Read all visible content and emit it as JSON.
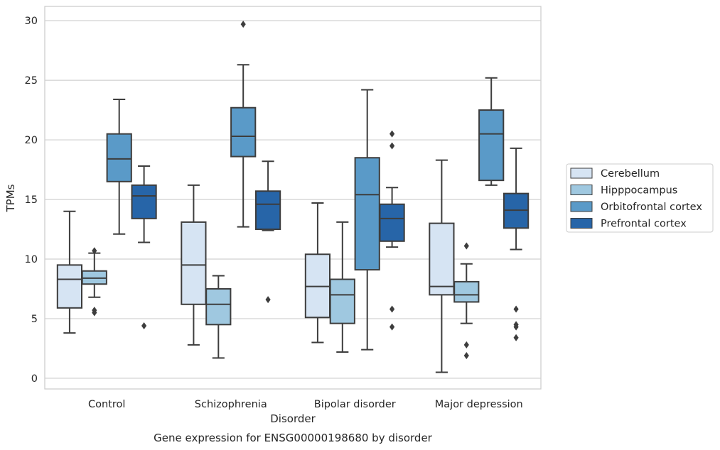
{
  "chart_data": {
    "type": "box",
    "title": "",
    "caption": "Gene expression for ENSG00000198680 by disorder",
    "xlabel": "Disorder",
    "ylabel": "TPMs",
    "ylim": [
      -0.9,
      31.2
    ],
    "yticks": [
      0,
      5,
      10,
      15,
      20,
      25,
      30
    ],
    "grid": "horizontal",
    "legend_position": "right",
    "categories": [
      "Control",
      "Schizophrenia",
      "Bipolar disorder",
      "Major depression"
    ],
    "series": [
      {
        "name": "Cerebellum",
        "color": "#d6e4f3",
        "boxes": [
          {
            "whisker_low": 3.8,
            "q1": 5.9,
            "median": 8.3,
            "q3": 9.5,
            "whisker_high": 14.0,
            "outliers": []
          },
          {
            "whisker_low": 2.8,
            "q1": 6.2,
            "median": 9.5,
            "q3": 13.1,
            "whisker_high": 16.2,
            "outliers": []
          },
          {
            "whisker_low": 3.0,
            "q1": 5.1,
            "median": 7.7,
            "q3": 10.4,
            "whisker_high": 14.7,
            "outliers": []
          },
          {
            "whisker_low": 0.5,
            "q1": 7.0,
            "median": 7.7,
            "q3": 13.0,
            "whisker_high": 18.3,
            "outliers": []
          }
        ]
      },
      {
        "name": "Hipppocampus",
        "color": "#9fc8e0",
        "boxes": [
          {
            "whisker_low": 6.8,
            "q1": 7.9,
            "median": 8.4,
            "q3": 9.0,
            "whisker_high": 10.5,
            "outliers": [
              10.7,
              5.7,
              5.5
            ]
          },
          {
            "whisker_low": 1.7,
            "q1": 4.5,
            "median": 6.2,
            "q3": 7.5,
            "whisker_high": 8.6,
            "outliers": []
          },
          {
            "whisker_low": 2.2,
            "q1": 4.6,
            "median": 7.0,
            "q3": 8.3,
            "whisker_high": 13.1,
            "outliers": []
          },
          {
            "whisker_low": 4.6,
            "q1": 6.4,
            "median": 7.0,
            "q3": 8.1,
            "whisker_high": 9.6,
            "outliers": [
              11.1,
              2.8,
              1.9
            ]
          }
        ]
      },
      {
        "name": "Orbitofrontal cortex",
        "color": "#5a9ac8",
        "boxes": [
          {
            "whisker_low": 12.1,
            "q1": 16.5,
            "median": 18.4,
            "q3": 20.5,
            "whisker_high": 23.4,
            "outliers": []
          },
          {
            "whisker_low": 12.7,
            "q1": 18.6,
            "median": 20.3,
            "q3": 22.7,
            "whisker_high": 26.3,
            "outliers": [
              29.7
            ]
          },
          {
            "whisker_low": 2.4,
            "q1": 9.1,
            "median": 15.4,
            "q3": 18.5,
            "whisker_high": 24.2,
            "outliers": []
          },
          {
            "whisker_low": 16.2,
            "q1": 16.6,
            "median": 20.5,
            "q3": 22.5,
            "whisker_high": 25.2,
            "outliers": []
          }
        ]
      },
      {
        "name": "Prefrontal cortex",
        "color": "#2765a8",
        "boxes": [
          {
            "whisker_low": 11.4,
            "q1": 13.4,
            "median": 15.3,
            "q3": 16.2,
            "whisker_high": 17.8,
            "outliers": [
              4.4
            ]
          },
          {
            "whisker_low": 12.4,
            "q1": 12.5,
            "median": 14.6,
            "q3": 15.7,
            "whisker_high": 18.2,
            "outliers": [
              6.6
            ]
          },
          {
            "whisker_low": 11.0,
            "q1": 11.5,
            "median": 13.4,
            "q3": 14.6,
            "whisker_high": 16.0,
            "outliers": [
              20.5,
              19.5,
              5.8,
              4.3
            ]
          },
          {
            "whisker_low": 10.8,
            "q1": 12.6,
            "median": 14.1,
            "q3": 15.5,
            "whisker_high": 19.3,
            "outliers": [
              5.8,
              4.5,
              4.3,
              3.4
            ]
          }
        ]
      }
    ]
  }
}
